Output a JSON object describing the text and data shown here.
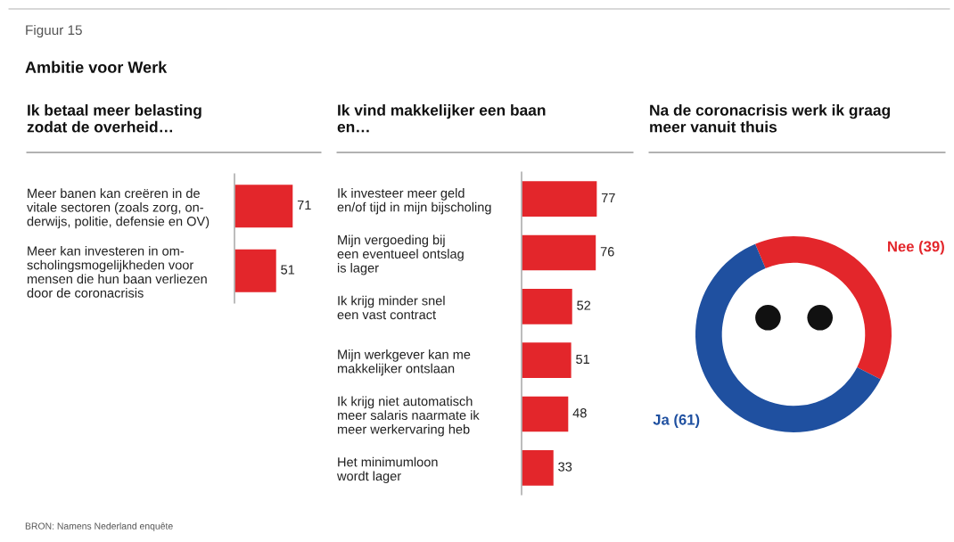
{
  "chart_data": [
    {
      "type": "bar",
      "orientation": "horizontal",
      "title": "Ik betaal meer belasting\nzodat de overheid…",
      "categories": [
        "Meer banen kan creëren in de\nvitale sectoren (zoals zorg, on-\nderwijs, politie, defensie en OV)",
        "Meer kan investeren in om-\nscholingsmogelijkheden voor\nmensen die hun baan verliezen\ndoor de coronacrisis"
      ],
      "values": [
        71,
        51
      ],
      "color": "#e3262b",
      "data_labels": true,
      "tick_labels": "y",
      "annotations": [
        "Figuur 15",
        "Ambitie voor Werk",
        "BRON: Namens Nederland enquête"
      ]
    },
    {
      "type": "bar",
      "orientation": "horizontal",
      "title": "Ik vind makkelijker een baan\nen…",
      "categories": [
        "Ik investeer meer geld\nen/of tijd in mijn bijscholing",
        "Mijn vergoeding bij\neen eventueel ontslag\nis lager",
        "Ik krijg minder snel\neen vast contract",
        "Mijn werkgever kan me\nmakkelijker ontslaan",
        "Ik krijg niet automatisch\nmeer salaris naarmate ik\nmeer werkervaring heb",
        "Het minimumloon\nwordt lager"
      ],
      "values": [
        77,
        76,
        52,
        51,
        48,
        33
      ],
      "color": "#e3262b",
      "data_labels": true,
      "tick_labels": "y"
    },
    {
      "type": "donut",
      "title": "Na de coronacrisis werk ik graag\nmeer vanuit thuis",
      "categories": [
        "Nee (39)",
        "Ja (61)"
      ],
      "values": [
        39,
        61
      ],
      "colors": [
        "#e3262b",
        "#1f50a0"
      ]
    }
  ]
}
